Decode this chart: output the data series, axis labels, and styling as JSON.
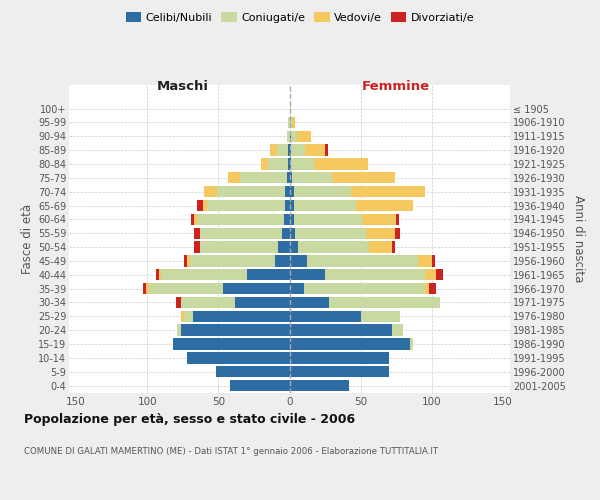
{
  "age_groups": [
    "0-4",
    "5-9",
    "10-14",
    "15-19",
    "20-24",
    "25-29",
    "30-34",
    "35-39",
    "40-44",
    "45-49",
    "50-54",
    "55-59",
    "60-64",
    "65-69",
    "70-74",
    "75-79",
    "80-84",
    "85-89",
    "90-94",
    "95-99",
    "100+"
  ],
  "birth_years": [
    "2001-2005",
    "1996-2000",
    "1991-1995",
    "1986-1990",
    "1981-1985",
    "1976-1980",
    "1971-1975",
    "1966-1970",
    "1961-1965",
    "1956-1960",
    "1951-1955",
    "1946-1950",
    "1941-1945",
    "1936-1940",
    "1931-1935",
    "1926-1930",
    "1921-1925",
    "1916-1920",
    "1911-1915",
    "1906-1910",
    "≤ 1905"
  ],
  "males_celibi": [
    42,
    52,
    72,
    82,
    76,
    68,
    38,
    47,
    30,
    10,
    8,
    5,
    4,
    3,
    3,
    2,
    1,
    1,
    0,
    0,
    0
  ],
  "males_coniugati": [
    0,
    0,
    0,
    0,
    3,
    6,
    38,
    52,
    60,
    60,
    55,
    58,
    60,
    55,
    48,
    33,
    14,
    8,
    2,
    1,
    0
  ],
  "males_vedovi": [
    0,
    0,
    0,
    0,
    0,
    2,
    0,
    2,
    2,
    2,
    0,
    0,
    3,
    3,
    9,
    8,
    5,
    5,
    0,
    0,
    0
  ],
  "males_divorziati": [
    0,
    0,
    0,
    0,
    0,
    0,
    4,
    2,
    2,
    2,
    4,
    4,
    2,
    4,
    0,
    0,
    0,
    0,
    0,
    0,
    0
  ],
  "females_nubili": [
    42,
    70,
    70,
    85,
    72,
    50,
    28,
    10,
    25,
    12,
    6,
    4,
    3,
    3,
    3,
    2,
    1,
    1,
    1,
    0,
    0
  ],
  "females_coniugate": [
    0,
    0,
    0,
    2,
    8,
    28,
    78,
    85,
    70,
    78,
    50,
    50,
    48,
    44,
    40,
    28,
    16,
    10,
    4,
    2,
    0
  ],
  "females_vedove": [
    0,
    0,
    0,
    0,
    0,
    0,
    0,
    3,
    8,
    10,
    16,
    20,
    24,
    40,
    52,
    44,
    38,
    14,
    10,
    2,
    1
  ],
  "females_divorziate": [
    0,
    0,
    0,
    0,
    0,
    0,
    0,
    5,
    5,
    2,
    2,
    4,
    2,
    0,
    0,
    0,
    0,
    2,
    0,
    0,
    0
  ],
  "color_celibi": "#2E6DA4",
  "color_coniugati": "#C8D9A2",
  "color_vedovi": "#F5C860",
  "color_divorziati": "#CC2222",
  "xlim": 155,
  "title": "Popolazione per età, sesso e stato civile - 2006",
  "subtitle": "COMUNE DI GALATI MAMERTINO (ME) - Dati ISTAT 1° gennaio 2006 - Elaborazione TUTTITALIA.IT",
  "ylabel_left": "Fasce di età",
  "ylabel_right": "Anni di nascita",
  "xlabel_maschi": "Maschi",
  "xlabel_femmine": "Femmine",
  "bg_color": "#eeeeee",
  "plot_bg": "#ffffff"
}
